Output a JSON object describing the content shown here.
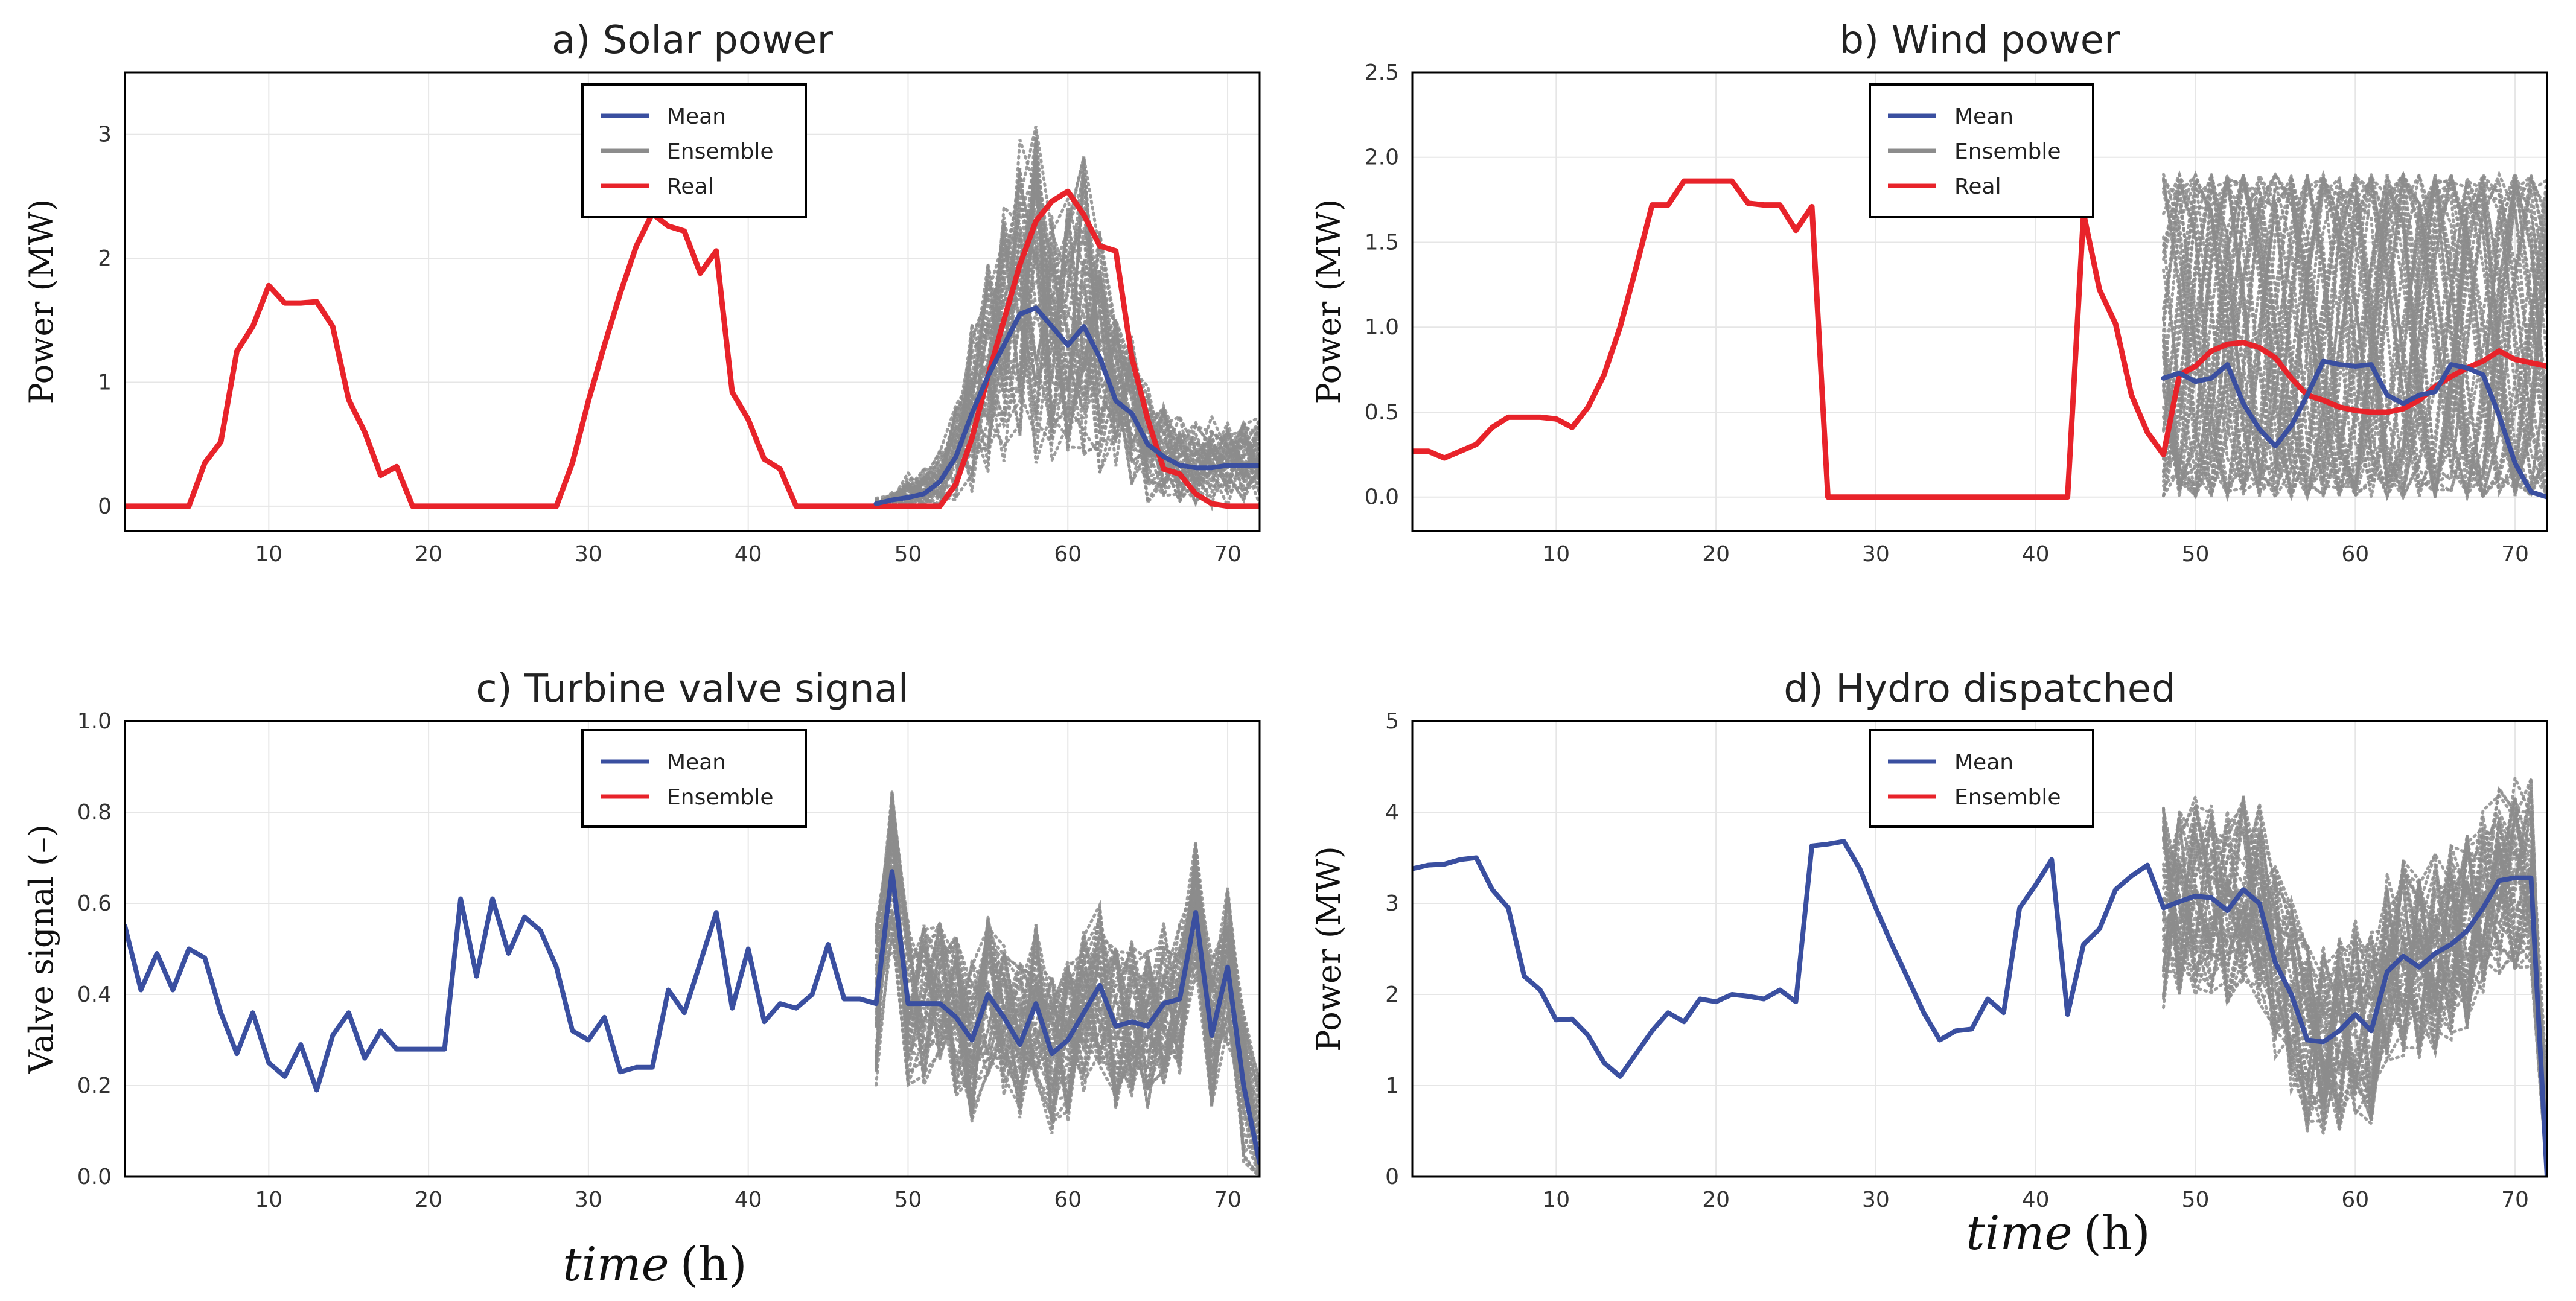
{
  "colors": {
    "mean": "#3a4fa0",
    "ensemble": "#8c8c8c",
    "real": "#e8232a"
  },
  "xlabel_word": "time",
  "xlabel_unit": "(h)",
  "chart_data": [
    {
      "id": "a",
      "type": "line",
      "title": "a) Solar power",
      "ylabel": "Power (MW)",
      "xlim": [
        1,
        72
      ],
      "ylim": [
        -0.2,
        3.5
      ],
      "xticks": [
        10,
        20,
        30,
        40,
        50,
        60,
        70
      ],
      "yticks": [
        0,
        1,
        2,
        3
      ],
      "legend": [
        "Mean",
        "Ensemble",
        "Real"
      ],
      "legend_colors": [
        "#3a4fa0",
        "#8c8c8c",
        "#e8232a"
      ],
      "legend_position": "top-center",
      "grid": true,
      "ensemble_members": 40,
      "series": [
        {
          "name": "Real",
          "color": "#e8232a",
          "x": [
            1,
            2,
            3,
            4,
            5,
            6,
            7,
            8,
            9,
            10,
            11,
            12,
            13,
            14,
            15,
            16,
            17,
            18,
            19,
            20,
            21,
            22,
            23,
            24,
            25,
            26,
            27,
            28,
            29,
            30,
            31,
            32,
            33,
            34,
            35,
            36,
            37,
            38,
            39,
            40,
            41,
            42,
            43,
            44,
            45,
            46,
            47,
            48,
            49,
            50,
            51,
            52,
            53,
            54,
            55,
            56,
            57,
            58,
            59,
            60,
            61,
            62,
            63,
            64,
            65,
            66,
            67,
            68,
            69,
            70,
            71,
            72
          ],
          "y": [
            0,
            0,
            0,
            0,
            0,
            0.35,
            0.52,
            1.25,
            1.45,
            1.78,
            1.64,
            1.64,
            1.65,
            1.45,
            0.86,
            0.6,
            0.25,
            0.32,
            0,
            0,
            0,
            0,
            0,
            0,
            0,
            0,
            0,
            0,
            0.35,
            0.85,
            1.3,
            1.72,
            2.1,
            2.36,
            2.26,
            2.22,
            1.88,
            2.06,
            0.92,
            0.7,
            0.38,
            0.3,
            0,
            0,
            0,
            0,
            0,
            0,
            0,
            0,
            0,
            0,
            0.18,
            0.55,
            1.05,
            1.5,
            1.95,
            2.3,
            2.46,
            2.54,
            2.35,
            2.1,
            2.06,
            1.2,
            0.7,
            0.3,
            0.26,
            0.1,
            0.02,
            0,
            0,
            0
          ]
        },
        {
          "name": "Mean",
          "color": "#3a4fa0",
          "x": [
            48,
            49,
            50,
            51,
            52,
            53,
            54,
            55,
            56,
            57,
            58,
            59,
            60,
            61,
            62,
            63,
            64,
            65,
            66,
            67,
            68,
            69,
            70,
            71,
            72
          ],
          "y": [
            0.02,
            0.05,
            0.07,
            0.1,
            0.2,
            0.4,
            0.75,
            1.05,
            1.3,
            1.55,
            1.6,
            1.45,
            1.3,
            1.45,
            1.2,
            0.85,
            0.75,
            0.5,
            0.4,
            0.33,
            0.31,
            0.31,
            0.33,
            0.33,
            0.33
          ]
        }
      ]
    },
    {
      "id": "b",
      "type": "line",
      "title": "b) Wind power",
      "ylabel": "Power (MW)",
      "xlim": [
        1,
        72
      ],
      "ylim": [
        -0.2,
        2.5
      ],
      "xticks": [
        10,
        20,
        30,
        40,
        50,
        60,
        70
      ],
      "yticks": [
        0.0,
        0.5,
        1.0,
        1.5,
        2.0,
        2.5
      ],
      "legend": [
        "Mean",
        "Ensemble",
        "Real"
      ],
      "legend_colors": [
        "#3a4fa0",
        "#8c8c8c",
        "#e8232a"
      ],
      "legend_position": "top-center",
      "grid": true,
      "ensemble_members": 40,
      "series": [
        {
          "name": "Real",
          "color": "#e8232a",
          "x": [
            1,
            2,
            3,
            4,
            5,
            6,
            7,
            8,
            9,
            10,
            11,
            12,
            13,
            14,
            15,
            16,
            17,
            18,
            19,
            20,
            21,
            22,
            23,
            24,
            25,
            26,
            27,
            28,
            29,
            30,
            31,
            32,
            33,
            34,
            35,
            36,
            37,
            38,
            39,
            40,
            41,
            42,
            43,
            44,
            45,
            46,
            47,
            48,
            49,
            50,
            51,
            52,
            53,
            54,
            55,
            56,
            57,
            58,
            59,
            60,
            61,
            62,
            63,
            64,
            65,
            66,
            67,
            68,
            69,
            70,
            71,
            72
          ],
          "y": [
            0.27,
            0.27,
            0.23,
            0.27,
            0.31,
            0.41,
            0.47,
            0.47,
            0.47,
            0.46,
            0.41,
            0.53,
            0.72,
            1.0,
            1.35,
            1.72,
            1.72,
            1.86,
            1.86,
            1.86,
            1.86,
            1.73,
            1.72,
            1.72,
            1.57,
            1.71,
            0,
            0,
            0,
            0,
            0,
            0,
            0,
            0,
            0,
            0,
            0,
            0,
            0,
            0,
            0,
            0,
            1.67,
            1.22,
            1.02,
            0.6,
            0.38,
            0.25,
            0.72,
            0.77,
            0.86,
            0.9,
            0.91,
            0.88,
            0.82,
            0.7,
            0.6,
            0.57,
            0.53,
            0.51,
            0.5,
            0.5,
            0.52,
            0.57,
            0.65,
            0.71,
            0.76,
            0.8,
            0.86,
            0.81,
            0.79,
            0.77
          ]
        },
        {
          "name": "Mean",
          "color": "#3a4fa0",
          "x": [
            48,
            49,
            50,
            51,
            52,
            53,
            54,
            55,
            56,
            57,
            58,
            59,
            60,
            61,
            62,
            63,
            64,
            65,
            66,
            67,
            68,
            69,
            70,
            71,
            72
          ],
          "y": [
            0.7,
            0.73,
            0.68,
            0.7,
            0.78,
            0.55,
            0.4,
            0.3,
            0.42,
            0.6,
            0.8,
            0.78,
            0.77,
            0.78,
            0.6,
            0.55,
            0.6,
            0.62,
            0.78,
            0.76,
            0.72,
            0.48,
            0.2,
            0.03,
            0.0
          ]
        }
      ]
    },
    {
      "id": "c",
      "type": "line",
      "title": "c) Turbine valve signal",
      "ylabel": "Valve signal (–)",
      "xlim": [
        1,
        72
      ],
      "ylim": [
        0.0,
        1.0
      ],
      "xticks": [
        10,
        20,
        30,
        40,
        50,
        60,
        70
      ],
      "yticks": [
        0.0,
        0.2,
        0.4,
        0.6,
        0.8,
        1.0
      ],
      "legend": [
        "Mean",
        "Ensemble"
      ],
      "legend_colors": [
        "#3a4fa0",
        "#e8232a"
      ],
      "legend_position": "top-center",
      "grid": true,
      "ensemble_members": 40,
      "series": [
        {
          "name": "Mean",
          "color": "#3a4fa0",
          "x": [
            1,
            2,
            3,
            4,
            5,
            6,
            7,
            8,
            9,
            10,
            11,
            12,
            13,
            14,
            15,
            16,
            17,
            18,
            19,
            20,
            21,
            22,
            23,
            24,
            25,
            26,
            27,
            28,
            29,
            30,
            31,
            32,
            33,
            34,
            35,
            36,
            37,
            38,
            39,
            40,
            41,
            42,
            43,
            44,
            45,
            46,
            47,
            48,
            49,
            50,
            51,
            52,
            53,
            54,
            55,
            56,
            57,
            58,
            59,
            60,
            61,
            62,
            63,
            64,
            65,
            66,
            67,
            68,
            69,
            70,
            71,
            72
          ],
          "y": [
            0.55,
            0.41,
            0.49,
            0.41,
            0.5,
            0.48,
            0.36,
            0.27,
            0.36,
            0.25,
            0.22,
            0.29,
            0.19,
            0.31,
            0.36,
            0.26,
            0.32,
            0.28,
            0.28,
            0.28,
            0.28,
            0.61,
            0.44,
            0.61,
            0.49,
            0.57,
            0.54,
            0.46,
            0.32,
            0.3,
            0.35,
            0.23,
            0.24,
            0.24,
            0.41,
            0.36,
            0.47,
            0.58,
            0.37,
            0.5,
            0.34,
            0.38,
            0.37,
            0.4,
            0.51,
            0.39,
            0.39,
            0.38,
            0.67,
            0.38,
            0.38,
            0.38,
            0.35,
            0.3,
            0.4,
            0.35,
            0.29,
            0.38,
            0.27,
            0.3,
            0.36,
            0.42,
            0.33,
            0.34,
            0.33,
            0.38,
            0.39,
            0.58,
            0.31,
            0.46,
            0.2,
            0.03
          ]
        }
      ]
    },
    {
      "id": "d",
      "type": "line",
      "title": "d) Hydro dispatched",
      "ylabel": "Power (MW)",
      "xlim": [
        1,
        72
      ],
      "ylim": [
        0,
        5
      ],
      "xticks": [
        10,
        20,
        30,
        40,
        50,
        60,
        70
      ],
      "yticks": [
        0,
        1,
        2,
        3,
        4,
        5
      ],
      "legend": [
        "Mean",
        "Ensemble"
      ],
      "legend_colors": [
        "#3a4fa0",
        "#e8232a"
      ],
      "legend_position": "top-center",
      "grid": true,
      "ensemble_members": 40,
      "series": [
        {
          "name": "Mean",
          "color": "#3a4fa0",
          "x": [
            1,
            2,
            3,
            4,
            5,
            6,
            7,
            8,
            9,
            10,
            11,
            12,
            13,
            14,
            15,
            16,
            17,
            18,
            19,
            20,
            21,
            22,
            23,
            24,
            25,
            26,
            27,
            28,
            29,
            30,
            31,
            32,
            33,
            34,
            35,
            36,
            37,
            38,
            39,
            40,
            41,
            42,
            43,
            44,
            45,
            46,
            47,
            48,
            49,
            50,
            51,
            52,
            53,
            54,
            55,
            56,
            57,
            58,
            59,
            60,
            61,
            62,
            63,
            64,
            65,
            66,
            67,
            68,
            69,
            70,
            71,
            72
          ],
          "y": [
            3.38,
            3.42,
            3.43,
            3.48,
            3.5,
            3.15,
            2.95,
            2.2,
            2.05,
            1.72,
            1.73,
            1.55,
            1.25,
            1.1,
            1.35,
            1.6,
            1.8,
            1.7,
            1.95,
            1.92,
            2.0,
            1.98,
            1.95,
            2.05,
            1.92,
            3.63,
            3.65,
            3.68,
            3.38,
            2.95,
            2.55,
            2.18,
            1.8,
            1.5,
            1.6,
            1.62,
            1.95,
            1.8,
            2.95,
            3.2,
            3.48,
            1.78,
            2.55,
            2.72,
            3.15,
            3.3,
            3.42,
            2.95,
            3.02,
            3.08,
            3.06,
            2.92,
            3.15,
            3.0,
            2.35,
            2.0,
            1.5,
            1.48,
            1.6,
            1.78,
            1.6,
            2.25,
            2.42,
            2.3,
            2.45,
            2.55,
            2.7,
            2.95,
            3.25,
            3.28,
            3.28,
            0.0
          ]
        }
      ]
    }
  ]
}
